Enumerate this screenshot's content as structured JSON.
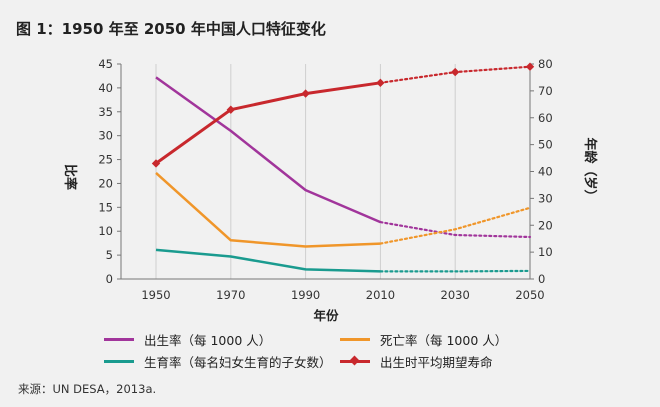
{
  "title": "图 1：1950 年至 2050 年中国人口特征变化",
  "source": "来源：UN DESA，2013a.",
  "chart_data": {
    "type": "line",
    "x": [
      1950,
      1970,
      1990,
      2010,
      2030,
      2050
    ],
    "xlabel": "年份",
    "ylabel_left": "比率",
    "ylabel_right": "年龄（岁）",
    "ylim_left": [
      0,
      45
    ],
    "yticks_left": [
      0,
      5,
      10,
      15,
      20,
      25,
      30,
      35,
      40,
      45
    ],
    "ylim_right": [
      0,
      80
    ],
    "yticks_right": [
      0,
      10,
      20,
      30,
      40,
      50,
      60,
      70,
      80
    ],
    "grid": "vertical",
    "projection_from": 2010,
    "series": [
      {
        "name": "出生率（每 1000 人）",
        "axis": "left",
        "color": "#a1359b",
        "marker": "none",
        "x": [
          1950,
          1970,
          1990,
          2010,
          2030,
          2050
        ],
        "values": [
          42.2,
          31,
          18.6,
          11.9,
          9.2,
          8.8
        ]
      },
      {
        "name": "死亡率（每 1000 人）",
        "axis": "left",
        "color": "#f0962a",
        "marker": "none",
        "x": [
          1950,
          1970,
          1990,
          2010,
          2030,
          2050
        ],
        "values": [
          22.2,
          8.1,
          6.8,
          7.4,
          10.4,
          14.9
        ]
      },
      {
        "name": "生育率（每名妇女生育的子女数）",
        "axis": "left",
        "color": "#1a9b8f",
        "marker": "none",
        "x": [
          1950,
          1970,
          1990,
          2010,
          2030,
          2050
        ],
        "values": [
          6.1,
          4.7,
          2.0,
          1.6,
          1.6,
          1.7
        ]
      },
      {
        "name": "出生时平均期望寿命",
        "axis": "right",
        "color": "#c8282d",
        "marker": "diamond",
        "x": [
          1950,
          1970,
          1990,
          2010,
          2030,
          2050
        ],
        "values": [
          43,
          63,
          69,
          73,
          77,
          79
        ]
      }
    ],
    "legend_position": "bottom"
  }
}
